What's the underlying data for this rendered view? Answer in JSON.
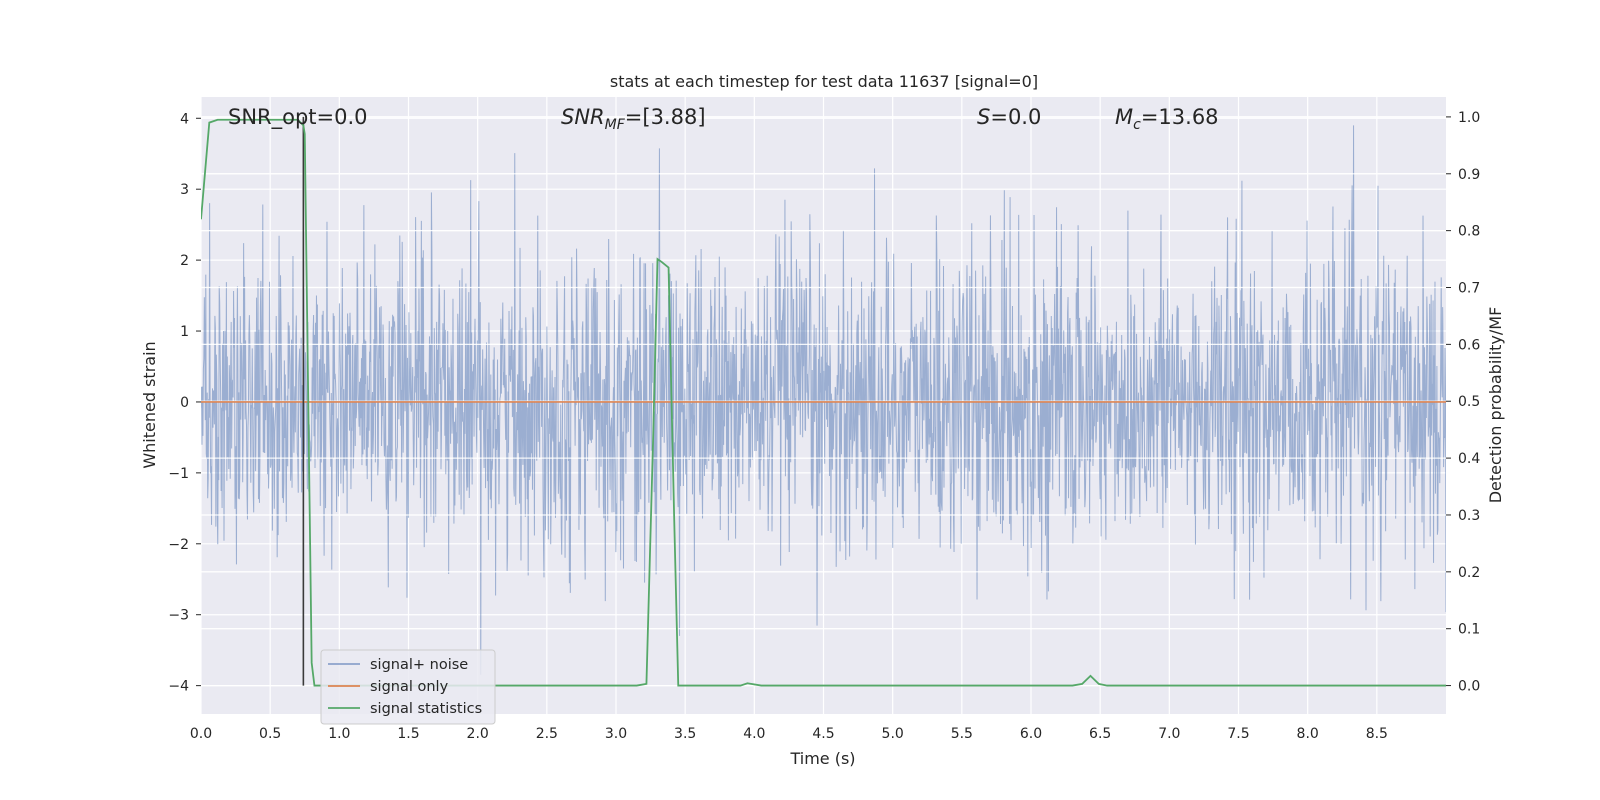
{
  "chart_data": {
    "type": "line",
    "title": "stats at each timestep for test data 11637 [signal=0]",
    "xlabel": "Time (s)",
    "ylabel_left": "Whitened strain",
    "ylabel_right": "Detection probability/MF",
    "xlim": [
      0.0,
      9.0
    ],
    "ylim_left": [
      -4.4,
      4.3
    ],
    "ylim_right": [
      -0.05,
      1.035
    ],
    "x_ticks": [
      0.0,
      0.5,
      1.0,
      1.5,
      2.0,
      2.5,
      3.0,
      3.5,
      4.0,
      4.5,
      5.0,
      5.5,
      6.0,
      6.5,
      7.0,
      7.5,
      8.0,
      8.5
    ],
    "x_tick_labels": [
      "0.0",
      "0.5",
      "1.0",
      "1.5",
      "2.0",
      "2.5",
      "3.0",
      "3.5",
      "4.0",
      "4.5",
      "5.0",
      "5.5",
      "6.0",
      "6.5",
      "7.0",
      "7.5",
      "8.0",
      "8.5"
    ],
    "y_left_ticks": [
      -4,
      -3,
      -2,
      -1,
      0,
      1,
      2,
      3,
      4
    ],
    "y_left_tick_labels": [
      "−4",
      "−3",
      "−2",
      "−1",
      "0",
      "1",
      "2",
      "3",
      "4"
    ],
    "y_right_ticks": [
      0.0,
      0.1,
      0.2,
      0.3,
      0.4,
      0.5,
      0.6,
      0.7,
      0.8,
      0.9,
      1.0
    ],
    "y_right_tick_labels": [
      "0.0",
      "0.1",
      "0.2",
      "0.3",
      "0.4",
      "0.5",
      "0.6",
      "0.7",
      "0.8",
      "0.9",
      "1.0"
    ],
    "grid": true,
    "annotations": {
      "snr_opt": "SNR_opt=0.0",
      "snr_mf_base": "SNR",
      "snr_mf_sub": "MF",
      "snr_mf_value": "=[3.88]",
      "s_var": "S",
      "s_value": "=0.0",
      "mc_base": "M",
      "mc_sub": "c",
      "mc_value": "=13.68"
    },
    "legend": {
      "placement": "lower-left",
      "entries": [
        "signal+ noise",
        "signal only",
        "signal statistics"
      ]
    },
    "series": [
      {
        "name": "signal+ noise",
        "axis": "left",
        "color": "#4c72b0",
        "description_range": [
          -4.0,
          3.9
        ],
        "x_range": [
          0.0,
          9.0
        ]
      },
      {
        "name": "signal only",
        "axis": "left",
        "color": "#dd8452",
        "x": [
          0.0,
          9.0
        ],
        "y": [
          0.0,
          0.0
        ]
      },
      {
        "name": "signal statistics",
        "axis": "right",
        "color": "#55a868",
        "x": [
          0.0,
          0.06,
          0.12,
          0.2,
          0.3,
          0.4,
          0.5,
          0.6,
          0.66,
          0.7,
          0.74,
          0.75,
          0.8,
          0.82,
          1.0,
          1.5,
          2.0,
          2.5,
          3.0,
          3.15,
          3.22,
          3.27,
          3.3,
          3.33,
          3.38,
          3.42,
          3.45,
          3.5,
          3.8,
          3.9,
          3.95,
          4.05,
          4.5,
          5.0,
          5.5,
          6.0,
          6.3,
          6.37,
          6.43,
          6.49,
          6.55,
          7.0,
          7.5,
          8.0,
          8.5,
          9.0
        ],
        "y": [
          0.82,
          0.99,
          0.995,
          0.995,
          0.995,
          0.995,
          0.995,
          0.995,
          0.995,
          0.995,
          0.985,
          0.97,
          0.04,
          0.0,
          0.0,
          0.0,
          0.0,
          0.0,
          0.0,
          0.0,
          0.003,
          0.45,
          0.75,
          0.745,
          0.735,
          0.3,
          0.0,
          0.0,
          0.0,
          0.0,
          0.004,
          0.0,
          0.0,
          0.0,
          0.0,
          0.0,
          0.0,
          0.003,
          0.017,
          0.003,
          0.0,
          0.0,
          0.0,
          0.0,
          0.0,
          0.0
        ]
      }
    ],
    "vertical_line": {
      "x": 0.74,
      "color": "#3a3a3a"
    },
    "colors": {
      "background": "#eaeaf2",
      "grid": "#ffffff",
      "text": "#262626"
    }
  }
}
